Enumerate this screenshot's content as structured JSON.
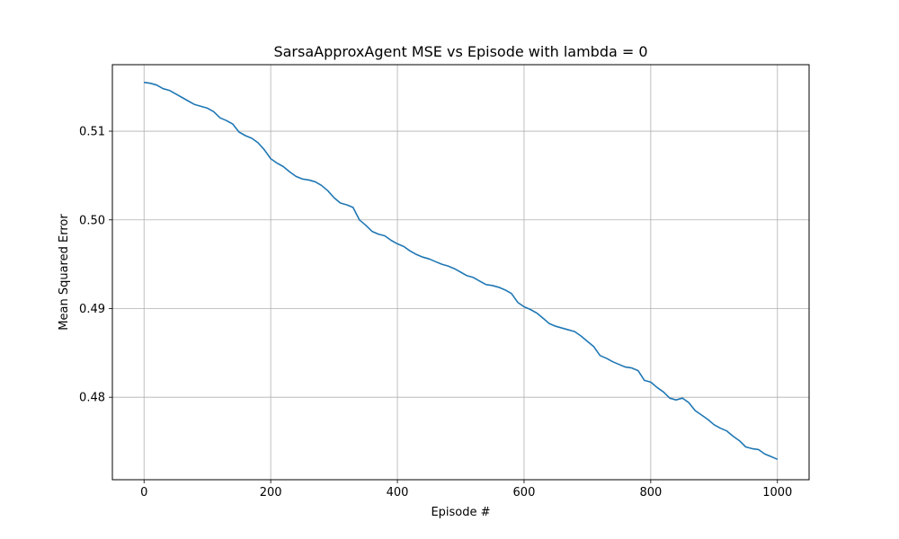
{
  "chart_data": {
    "type": "line",
    "title": "SarsaApproxAgent MSE vs Episode with lambda = 0",
    "xlabel": "Episode #",
    "ylabel": "Mean Squared Error",
    "xlim": [
      -50,
      1050
    ],
    "ylim": [
      0.4707,
      0.5175
    ],
    "xticks": [
      0,
      200,
      400,
      600,
      800,
      1000
    ],
    "xtick_labels": [
      "0",
      "200",
      "400",
      "600",
      "800",
      "1000"
    ],
    "yticks": [
      0.48,
      0.49,
      0.5,
      0.51
    ],
    "ytick_labels": [
      "0.48",
      "0.49",
      "0.50",
      "0.51"
    ],
    "grid": true,
    "series": [
      {
        "color": "#1f77b4",
        "x": [
          0,
          10,
          20,
          30,
          40,
          50,
          60,
          70,
          80,
          90,
          100,
          110,
          120,
          130,
          140,
          150,
          160,
          170,
          180,
          190,
          200,
          210,
          220,
          230,
          240,
          250,
          260,
          270,
          280,
          290,
          300,
          310,
          320,
          330,
          340,
          350,
          360,
          370,
          380,
          390,
          400,
          410,
          420,
          430,
          440,
          450,
          460,
          470,
          480,
          490,
          500,
          510,
          520,
          530,
          540,
          550,
          560,
          570,
          580,
          590,
          600,
          610,
          620,
          630,
          640,
          650,
          660,
          670,
          680,
          690,
          700,
          710,
          720,
          730,
          740,
          750,
          760,
          770,
          780,
          790,
          800,
          810,
          820,
          830,
          840,
          850,
          860,
          870,
          880,
          890,
          900,
          910,
          920,
          930,
          940,
          950,
          960,
          970,
          980,
          990,
          1000
        ],
        "y": [
          0.5155,
          0.5154,
          0.5152,
          0.5148,
          0.5146,
          0.5142,
          0.5138,
          0.5134,
          0.513,
          0.5128,
          0.5126,
          0.5122,
          0.5115,
          0.5112,
          0.5108,
          0.5099,
          0.5095,
          0.5092,
          0.5087,
          0.5079,
          0.5069,
          0.5064,
          0.506,
          0.5054,
          0.5049,
          0.5046,
          0.5045,
          0.5043,
          0.5039,
          0.5033,
          0.5025,
          0.5019,
          0.5017,
          0.5014,
          0.5,
          0.4994,
          0.4987,
          0.4984,
          0.4982,
          0.4977,
          0.4973,
          0.497,
          0.4965,
          0.4961,
          0.4958,
          0.4956,
          0.4953,
          0.495,
          0.4948,
          0.4945,
          0.4941,
          0.4937,
          0.4935,
          0.4931,
          0.4927,
          0.4926,
          0.4924,
          0.4921,
          0.4917,
          0.4907,
          0.4902,
          0.4899,
          0.4895,
          0.4889,
          0.4883,
          0.488,
          0.4878,
          0.4876,
          0.4874,
          0.4869,
          0.4863,
          0.4857,
          0.4847,
          0.4844,
          0.484,
          0.4837,
          0.4834,
          0.4833,
          0.483,
          0.4819,
          0.4817,
          0.4811,
          0.4806,
          0.4799,
          0.4797,
          0.4799,
          0.4794,
          0.4785,
          0.478,
          0.4775,
          0.4769,
          0.4765,
          0.4762,
          0.4756,
          0.4751,
          0.4744,
          0.4742,
          0.4741,
          0.4736,
          0.4733,
          0.473
        ]
      }
    ]
  }
}
